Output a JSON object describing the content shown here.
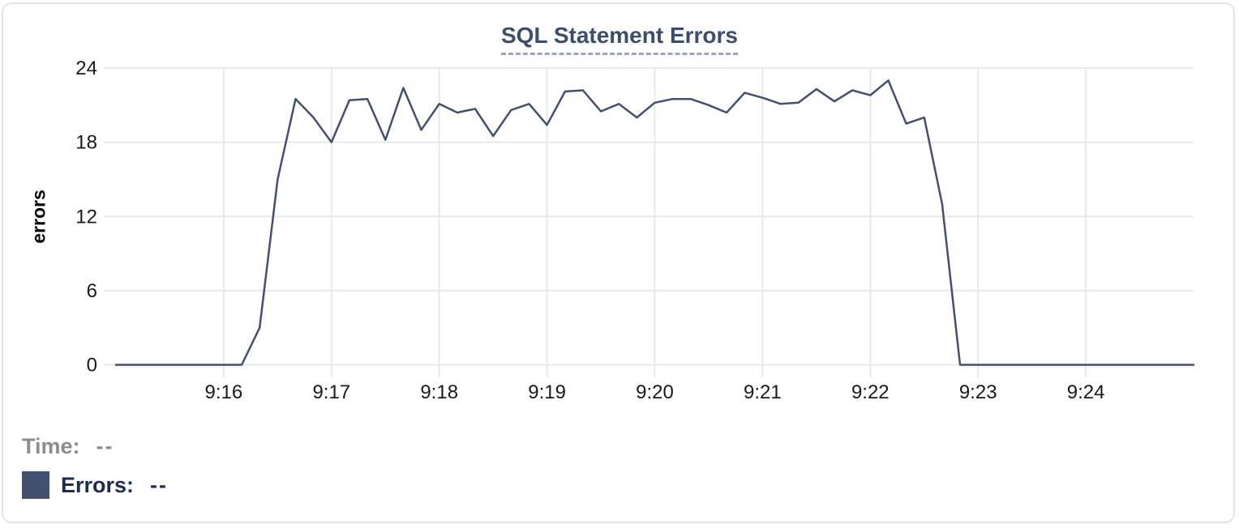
{
  "card": {
    "title": "SQL Statement Errors"
  },
  "legend": {
    "time_label": "Time:",
    "time_value": "--",
    "errors_label": "Errors:",
    "errors_value": "--",
    "swatch_color": "#42516f"
  },
  "colors": {
    "line": "#42516f",
    "grid": "#e9e9e9",
    "tick_text": "#1a1a1a",
    "title_text": "#3d4d6e",
    "card_border": "#e4e4e8"
  },
  "chart_data": {
    "type": "line",
    "title": "SQL Statement Errors",
    "xlabel": "",
    "ylabel": "errors",
    "ylim": [
      0,
      24
    ],
    "y_ticks": [
      0,
      6,
      12,
      18,
      24
    ],
    "x_ticks": [
      "9:16",
      "9:17",
      "9:18",
      "9:19",
      "9:20",
      "9:21",
      "9:22",
      "9:23",
      "9:24"
    ],
    "x_range": [
      "9:15:00",
      "9:25:00"
    ],
    "grid": true,
    "legend_position": "bottom-left",
    "series": [
      {
        "name": "Errors",
        "color": "#42516f",
        "times": [
          "9:15:00",
          "9:15:10",
          "9:15:20",
          "9:15:30",
          "9:15:40",
          "9:15:50",
          "9:16:00",
          "9:16:10",
          "9:16:20",
          "9:16:30",
          "9:16:40",
          "9:16:50",
          "9:17:00",
          "9:17:10",
          "9:17:20",
          "9:17:30",
          "9:17:40",
          "9:17:50",
          "9:18:00",
          "9:18:10",
          "9:18:20",
          "9:18:30",
          "9:18:40",
          "9:18:50",
          "9:19:00",
          "9:19:10",
          "9:19:20",
          "9:19:30",
          "9:19:40",
          "9:19:50",
          "9:20:00",
          "9:20:10",
          "9:20:20",
          "9:20:30",
          "9:20:40",
          "9:20:50",
          "9:21:00",
          "9:21:10",
          "9:21:20",
          "9:21:30",
          "9:21:40",
          "9:21:50",
          "9:22:00",
          "9:22:10",
          "9:22:20",
          "9:22:30",
          "9:22:40",
          "9:22:50",
          "9:23:00",
          "9:23:10",
          "9:23:20",
          "9:23:30",
          "9:23:40",
          "9:23:50",
          "9:24:00",
          "9:24:10",
          "9:24:20",
          "9:24:30",
          "9:24:40",
          "9:24:50",
          "9:25:00"
        ],
        "values": [
          0,
          0,
          0,
          0,
          0,
          0,
          0,
          0,
          3,
          15,
          21.5,
          20,
          18,
          21.4,
          21.5,
          18.2,
          22.4,
          19,
          21.1,
          20.4,
          20.7,
          18.5,
          20.6,
          21.1,
          19.4,
          22.1,
          22.2,
          20.5,
          21.1,
          20,
          21.2,
          21.5,
          21.5,
          21,
          20.4,
          22,
          21.6,
          21.1,
          21.2,
          22.3,
          21.3,
          22.2,
          21.8,
          23,
          19.5,
          20,
          13,
          0,
          0,
          0,
          0,
          0,
          0,
          0,
          0,
          0,
          0,
          0,
          0,
          0,
          0
        ]
      }
    ]
  }
}
